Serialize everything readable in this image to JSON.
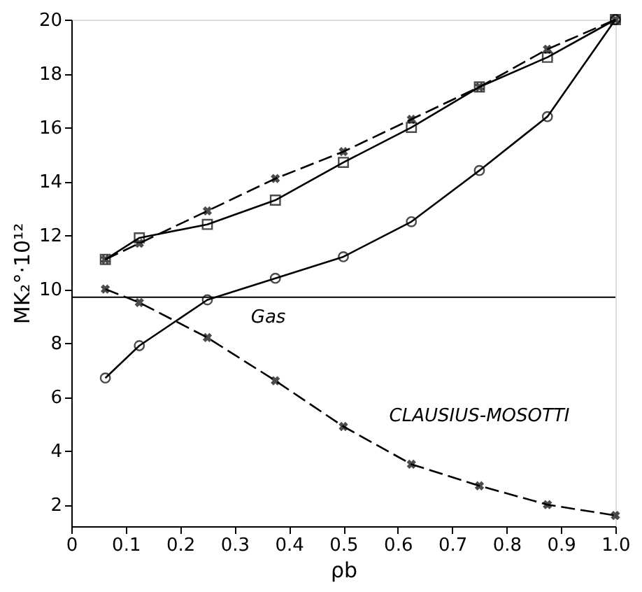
{
  "chart_data": {
    "type": "line",
    "xlabel": "ρb",
    "ylabel": "MK₂°·10¹²",
    "x": [
      0.0625,
      0.125,
      0.25,
      0.375,
      0.5,
      0.625,
      0.75,
      0.875,
      1.0
    ],
    "series": [
      {
        "color": "#000000",
        "marker": "cross",
        "line_style": "dashed",
        "values": [
          11.1,
          11.7,
          12.9,
          14.1,
          15.1,
          16.3,
          17.5,
          18.9,
          20.0
        ]
      },
      {
        "color": "#000000",
        "marker": "square",
        "line_style": "solid",
        "values": [
          11.1,
          11.9,
          12.4,
          13.3,
          14.7,
          16.0,
          17.5,
          18.6,
          20.0
        ]
      },
      {
        "color": "#000000",
        "marker": "circle",
        "line_style": "solid",
        "values": [
          6.7,
          7.9,
          9.6,
          10.4,
          11.2,
          12.5,
          14.4,
          16.4,
          20.0
        ]
      },
      {
        "name": "CLAUSIUS-MOSOTTI",
        "color": "#000000",
        "marker": "cross",
        "line_style": "dashed",
        "values": [
          10.0,
          9.5,
          8.2,
          6.6,
          4.9,
          3.5,
          2.7,
          2.0,
          1.6
        ]
      }
    ],
    "ref_lines": [
      {
        "axis": "y",
        "value": 9.7,
        "label": "Gas",
        "color": "#000000"
      }
    ],
    "xlim": [
      0,
      1.0
    ],
    "ylim": [
      1.2,
      20
    ],
    "xticks": [
      0,
      0.1,
      0.2,
      0.3,
      0.4,
      0.5,
      0.6,
      0.7,
      0.8,
      0.9,
      {
        "value": 1,
        "label": "1.0"
      }
    ],
    "yticks": [
      2,
      4,
      6,
      8,
      10,
      12,
      14,
      16,
      18,
      20
    ],
    "grid": false
  }
}
